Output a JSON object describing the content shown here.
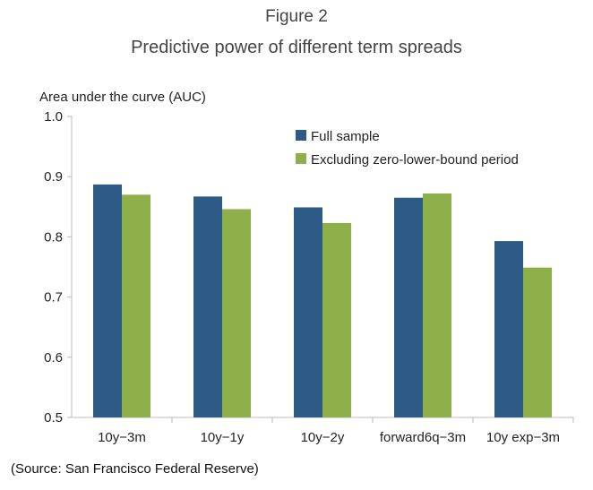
{
  "figure": {
    "label": "Figure 2",
    "title": "Predictive power of different term spreads",
    "source": "(Source: San Francisco Federal Reserve)"
  },
  "chart_data": {
    "type": "bar",
    "title": "Predictive power of different term spreads",
    "ylabel": "Area under the curve (AUC)",
    "xlabel": "",
    "ylim": [
      0.5,
      1.0
    ],
    "yticks": [
      "0.5",
      "0.6",
      "0.7",
      "0.8",
      "0.9",
      "1.0"
    ],
    "categories": [
      "10y−3m",
      "10y−1y",
      "10y−2y",
      "forward6q−3m",
      "10y exp−3m"
    ],
    "series": [
      {
        "name": "Full sample",
        "color": "#2E5A87",
        "values": [
          0.887,
          0.867,
          0.849,
          0.865,
          0.793
        ]
      },
      {
        "name": "Excluding zero-lower-bound period",
        "color": "#8DB04A",
        "values": [
          0.87,
          0.846,
          0.823,
          0.872,
          0.749
        ]
      }
    ],
    "legend": "top-right",
    "grid": false
  }
}
